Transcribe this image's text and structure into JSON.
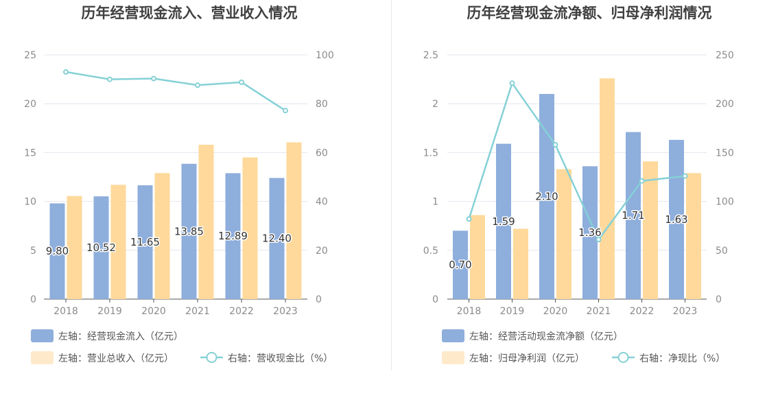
{
  "colors": {
    "bar_primary": "#8eaedc",
    "bar_secondary": "#fed99b",
    "bar_secondary_legend": "#feeacb",
    "line": "#85d1d6",
    "grid": "#e3e6ef",
    "axis": "#555555"
  },
  "chart_data": [
    {
      "type": "bar",
      "title": "历年经营现金流入、营业收入情况",
      "categories": [
        "2018",
        "2019",
        "2020",
        "2021",
        "2022",
        "2023"
      ],
      "ylim": [
        0,
        25
      ],
      "yticks": [
        "0",
        "5",
        "10",
        "15",
        "20",
        "25"
      ],
      "y2lim": [
        0,
        100
      ],
      "y2ticks": [
        "0",
        "20",
        "40",
        "60",
        "80",
        "100"
      ],
      "series": [
        {
          "name": "左轴：经营现金流入（亿元）",
          "kind": "bar",
          "axis": "left",
          "values": [
            9.8,
            10.52,
            11.65,
            13.85,
            12.89,
            12.4
          ],
          "labels": [
            "9.80",
            "10.52",
            "11.65",
            "13.85",
            "12.89",
            "12.40"
          ]
        },
        {
          "name": "左轴：营业总收入（亿元）",
          "kind": "bar",
          "axis": "left",
          "values": [
            10.55,
            11.7,
            12.9,
            15.8,
            14.5,
            16.05
          ]
        },
        {
          "name": "右轴：营收现金比（%）",
          "kind": "line",
          "axis": "right",
          "values": [
            93.0,
            90.0,
            90.3,
            87.6,
            88.8,
            77.2
          ]
        }
      ],
      "grid": true,
      "legend_position": "bottom"
    },
    {
      "type": "bar",
      "title": "历年经营现金流净额、归母净利润情况",
      "categories": [
        "2018",
        "2019",
        "2020",
        "2021",
        "2022",
        "2023"
      ],
      "ylim": [
        0,
        2.5
      ],
      "yticks": [
        "0",
        "0.5",
        "1",
        "1.5",
        "2",
        "2.5"
      ],
      "y2lim": [
        0,
        250
      ],
      "y2ticks": [
        "0",
        "50",
        "100",
        "150",
        "200",
        "250"
      ],
      "series": [
        {
          "name": "左轴：经营活动现金流净额（亿元）",
          "kind": "bar",
          "axis": "left",
          "values": [
            0.7,
            1.59,
            2.1,
            1.36,
            1.71,
            1.63
          ],
          "labels": [
            "0.70",
            "1.59",
            "2.10",
            "1.36",
            "1.71",
            "1.63"
          ]
        },
        {
          "name": "左轴：归母净利润（亿元）",
          "kind": "bar",
          "axis": "left",
          "values": [
            0.86,
            0.72,
            1.33,
            2.26,
            1.41,
            1.29
          ]
        },
        {
          "name": "右轴：净现比（%）",
          "kind": "line",
          "axis": "right",
          "values": [
            82,
            221,
            158,
            61,
            121,
            126
          ]
        }
      ],
      "grid": true,
      "legend_position": "bottom"
    }
  ]
}
